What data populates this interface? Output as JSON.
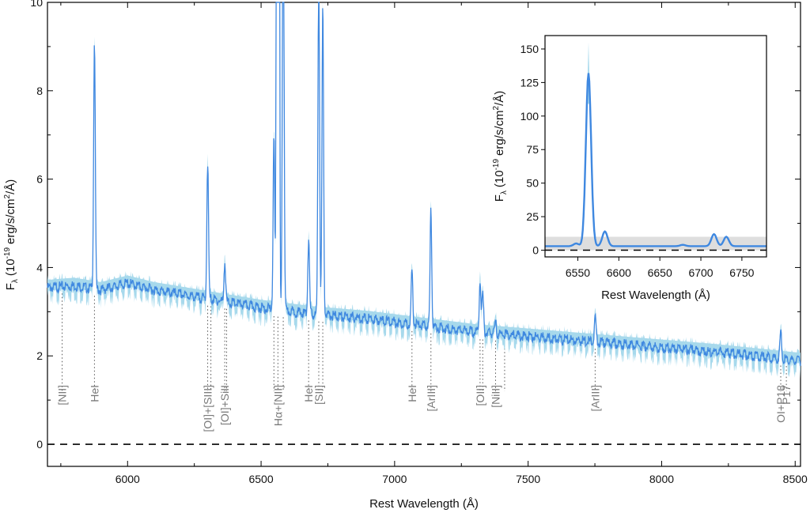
{
  "colors": {
    "spectrum": "#3f88e0",
    "error_band": "#a7d9ec",
    "continuum_band": "#dedede",
    "marker": "#555555",
    "line_label": "#7a7a7a",
    "axis": "#000000"
  },
  "chart_data": [
    {
      "type": "line",
      "title": "",
      "xlabel": "Rest Wavelength (Å)",
      "ylabel": "F_λ (10^-19 erg/s/cm²/Å)",
      "ylabel_parts": {
        "f": "F",
        "lambda": "λ",
        "open": "(10",
        "exp": "-19",
        "units": "erg/s/cm",
        "sq": "2",
        "tail": "/Å)"
      },
      "xlim": [
        5700,
        8520
      ],
      "ylim": [
        -0.5,
        10
      ],
      "xticks": [
        6000,
        6500,
        7000,
        7500,
        8000,
        8500
      ],
      "yticks": [
        0,
        2,
        4,
        6,
        8,
        10
      ],
      "grid": false,
      "zero_line": 0,
      "continuum": {
        "x": [
          5700,
          5800,
          5900,
          6000,
          6100,
          6300,
          6500,
          6700,
          6900,
          7100,
          7300,
          7600,
          7900,
          8200,
          8520
        ],
        "y": [
          3.6,
          3.65,
          3.55,
          3.7,
          3.55,
          3.35,
          3.15,
          3.0,
          2.9,
          2.75,
          2.6,
          2.45,
          2.3,
          2.15,
          1.95
        ]
      },
      "emission_lines": [
        {
          "wavelength": 5755,
          "label": "[NII]",
          "peak": 0.0,
          "width": 3
        },
        {
          "wavelength": 5876,
          "label": "HeI",
          "peak": 5.6,
          "width": 3
        },
        {
          "wavelength": 6300,
          "label": "[OI]+[SIII]",
          "peak": 3.1,
          "width": 3
        },
        {
          "wavelength": 6312,
          "label": "",
          "peak": 0.0,
          "width": 3
        },
        {
          "wavelength": 6364,
          "label": "[OI]+SiII",
          "peak": 0.9,
          "width": 3
        },
        {
          "wavelength": 6371,
          "label": "",
          "peak": 0.0,
          "width": 3
        },
        {
          "wavelength": 6548,
          "label": "",
          "peak": 3.9,
          "width": 3
        },
        {
          "wavelength": 6563,
          "label": "Hα+[NII]",
          "peak": 128.0,
          "width": 3
        },
        {
          "wavelength": 6583,
          "label": "",
          "peak": 10.0,
          "width": 3
        },
        {
          "wavelength": 6678,
          "label": "HeI",
          "peak": 1.7,
          "width": 3
        },
        {
          "wavelength": 6716,
          "label": "[SII]",
          "peak": 8.0,
          "width": 3
        },
        {
          "wavelength": 6731,
          "label": "",
          "peak": 7.0,
          "width": 3
        },
        {
          "wavelength": 7065,
          "label": "HeI",
          "peak": 1.2,
          "width": 3
        },
        {
          "wavelength": 7136,
          "label": "[ArIII]",
          "peak": 2.7,
          "width": 3
        },
        {
          "wavelength": 7320,
          "label": "[OII]",
          "peak": 1.2,
          "width": 3
        },
        {
          "wavelength": 7330,
          "label": "",
          "peak": 0.9,
          "width": 3
        },
        {
          "wavelength": 7378,
          "label": "[NiII]",
          "peak": 0.25,
          "width": 3
        },
        {
          "wavelength": 7412,
          "label": "",
          "peak": 0.0,
          "width": 3
        },
        {
          "wavelength": 7751,
          "label": "[ArIII]",
          "peak": 0.6,
          "width": 3
        },
        {
          "wavelength": 8446,
          "label": "OI+P18",
          "peak": 0.6,
          "width": 3
        },
        {
          "wavelength": 8467,
          "label": "P17",
          "peak": 0.0,
          "width": 3
        }
      ]
    },
    {
      "type": "line",
      "title": "",
      "xlabel": "Rest Wavelength (Å)",
      "ylabel": "F_λ (10^-19 erg/s/cm²/Å)",
      "xlim": [
        6510,
        6780
      ],
      "ylim": [
        -5,
        160
      ],
      "xticks": [
        6550,
        6600,
        6650,
        6700,
        6750
      ],
      "yticks": [
        0,
        25,
        50,
        75,
        100,
        125,
        150
      ],
      "grid": false,
      "zero_line": 0,
      "shaded_band": [
        0,
        10
      ],
      "peaks": [
        {
          "x": 6563,
          "y": 132,
          "y_max": 155
        },
        {
          "x": 6548,
          "y": 5
        },
        {
          "x": 6583,
          "y": 14
        },
        {
          "x": 6678,
          "y": 4
        },
        {
          "x": 6716,
          "y": 12
        },
        {
          "x": 6731,
          "y": 10
        }
      ]
    }
  ]
}
